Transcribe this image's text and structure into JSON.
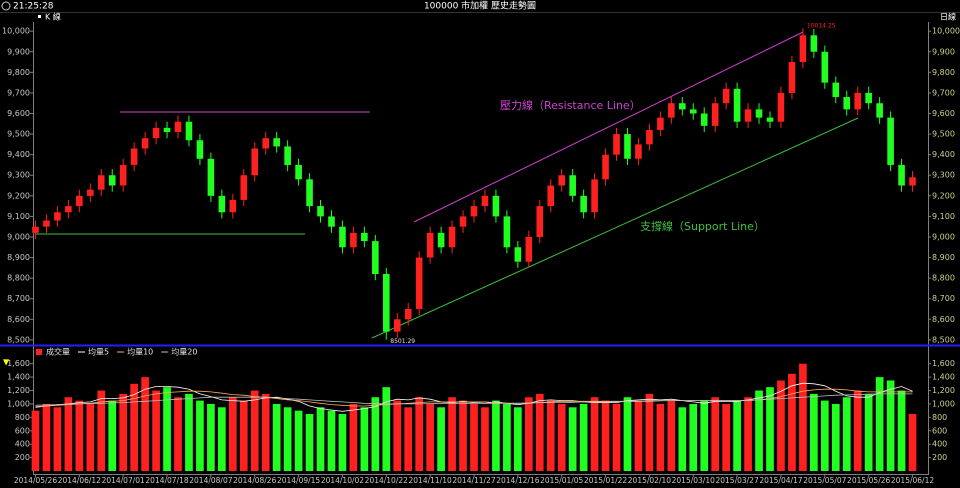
{
  "chart_data": [
    {
      "type": "candlestick",
      "title": "100000 市加權  歷史走勢圖",
      "time": "21:25:28",
      "period": "日線",
      "up_color": "#ff2020",
      "down_color": "#20ff20",
      "series": [
        {
          "name": "K 線",
          "open": [
            9020,
            9050,
            9080,
            9120,
            9150,
            9200,
            9230,
            9300,
            9250,
            9350,
            9430,
            9480,
            9530,
            9510,
            9560,
            9470,
            9380,
            9200,
            9120,
            9180,
            9300,
            9430,
            9480,
            9440,
            9350,
            9280,
            9150,
            9100,
            9050,
            8950,
            9020,
            8980,
            8820,
            8540,
            8600,
            8650,
            8900,
            9020,
            8950,
            9050,
            9100,
            9150,
            9200,
            9100,
            8950,
            8880,
            9000,
            9150,
            9250,
            9300,
            9200,
            9120,
            9280,
            9400,
            9500,
            9380,
            9450,
            9520,
            9580,
            9650,
            9620,
            9600,
            9540,
            9650,
            9720,
            9560,
            9620,
            9580,
            9560,
            9700,
            9850,
            9980,
            9900,
            9750,
            9680,
            9620,
            9700,
            9650,
            9580,
            9350,
            9250
          ],
          "high": [
            9080,
            9110,
            9150,
            9180,
            9230,
            9260,
            9330,
            9330,
            9380,
            9460,
            9510,
            9560,
            9560,
            9590,
            9590,
            9500,
            9410,
            9230,
            9210,
            9330,
            9460,
            9510,
            9510,
            9470,
            9380,
            9310,
            9180,
            9130,
            9080,
            9050,
            9050,
            9010,
            8850,
            8630,
            8680,
            8930,
            9050,
            9050,
            9080,
            9130,
            9180,
            9230,
            9230,
            9130,
            8980,
            9030,
            9180,
            9280,
            9330,
            9330,
            9230,
            9310,
            9430,
            9530,
            9530,
            9480,
            9550,
            9610,
            9680,
            9680,
            9650,
            9630,
            9680,
            9750,
            9750,
            9650,
            9650,
            9610,
            9730,
            9880,
            10014.25,
            10010,
            9930,
            9780,
            9710,
            9730,
            9730,
            9680,
            9610,
            9380,
            9320
          ],
          "low": [
            8990,
            9020,
            9050,
            9090,
            9120,
            9170,
            9200,
            9220,
            9220,
            9320,
            9400,
            9450,
            9480,
            9480,
            9440,
            9350,
            9170,
            9090,
            9090,
            9150,
            9270,
            9400,
            9410,
            9320,
            9250,
            9120,
            9070,
            9020,
            8920,
            8920,
            8950,
            8790,
            8501.29,
            8510,
            8570,
            8620,
            8870,
            8920,
            8920,
            9020,
            9070,
            9120,
            9070,
            8920,
            8850,
            8850,
            8970,
            9120,
            9220,
            9170,
            9090,
            9090,
            9250,
            9370,
            9350,
            9350,
            9420,
            9490,
            9550,
            9590,
            9570,
            9510,
            9510,
            9620,
            9530,
            9530,
            9550,
            9530,
            9530,
            9670,
            9820,
            9870,
            9720,
            9650,
            9590,
            9590,
            9620,
            9550,
            9320,
            9220,
            9220
          ],
          "close": [
            9050,
            9080,
            9120,
            9150,
            9200,
            9230,
            9300,
            9250,
            9350,
            9430,
            9480,
            9530,
            9510,
            9560,
            9470,
            9380,
            9200,
            9120,
            9180,
            9300,
            9430,
            9480,
            9440,
            9350,
            9280,
            9150,
            9100,
            9050,
            8950,
            9020,
            8980,
            8820,
            8540,
            8600,
            8650,
            8900,
            9020,
            8950,
            9050,
            9100,
            9150,
            9200,
            9100,
            8950,
            8880,
            9000,
            9150,
            9250,
            9300,
            9200,
            9120,
            9280,
            9400,
            9500,
            9380,
            9450,
            9520,
            9580,
            9650,
            9620,
            9600,
            9540,
            9650,
            9720,
            9560,
            9620,
            9580,
            9560,
            9700,
            9850,
            9980,
            9900,
            9750,
            9680,
            9620,
            9700,
            9650,
            9580,
            9350,
            9250,
            9290
          ]
        }
      ],
      "extremes": [
        10014.25,
        8501.29
      ],
      "annotations": [
        {
          "text": "壓力線（Resistance Line）",
          "color": "#d040d0"
        },
        {
          "text": "支撐線（Support Line）",
          "color": "#40c040"
        }
      ],
      "ylim": [
        8480,
        10030
      ],
      "yticks": [
        {
          "value": 8500,
          "label": "8,500"
        },
        {
          "value": 8600,
          "label": "8,600"
        },
        {
          "value": 8700,
          "label": "8,700"
        },
        {
          "value": 8800,
          "label": "8,800"
        },
        {
          "value": 8900,
          "label": "8,900"
        },
        {
          "value": 9000,
          "label": "9,000"
        },
        {
          "value": 9100,
          "label": "9,100"
        },
        {
          "value": 9200,
          "label": "9,200"
        },
        {
          "value": 9300,
          "label": "9,300"
        },
        {
          "value": 9400,
          "label": "9,400"
        },
        {
          "value": 9500,
          "label": "9,500"
        },
        {
          "value": 9600,
          "label": "9,600"
        },
        {
          "value": 9700,
          "label": "9,700"
        },
        {
          "value": 9800,
          "label": "9,800"
        },
        {
          "value": 9900,
          "label": "9,900"
        },
        {
          "value": 10000,
          "label": "10,000"
        }
      ],
      "grid": false
    },
    {
      "type": "bar",
      "categories": [
        "2014/05/26",
        null,
        null,
        null,
        "2014/06/12",
        null,
        null,
        null,
        "2014/07/01",
        null,
        null,
        null,
        "2014/07/18",
        null,
        null,
        null,
        "2014/08/07",
        null,
        null,
        null,
        "2014/08/26",
        null,
        null,
        null,
        "2014/09/15",
        null,
        null,
        null,
        "2014/10/02",
        null,
        null,
        null,
        "2014/10/22",
        null,
        null,
        null,
        "2014/11/10",
        null,
        null,
        null,
        "2014/11/27",
        null,
        null,
        null,
        "2014/12/16",
        null,
        null,
        null,
        "2015/01/05",
        null,
        null,
        null,
        "2015/01/22",
        null,
        null,
        null,
        "2015/02/10",
        null,
        null,
        null,
        "2015/03/10",
        null,
        null,
        null,
        "2015/03/27",
        null,
        null,
        null,
        "2015/04/17",
        null,
        null,
        null,
        "2015/05/07",
        null,
        null,
        null,
        "2015/05/26",
        null,
        null,
        null,
        "2015/06/12"
      ],
      "series": [
        {
          "name": "成交量",
          "type": "bar",
          "color": "#ff2020",
          "values": [
            900,
            1000,
            950,
            1100,
            1050,
            1000,
            1200,
            1050,
            1150,
            1300,
            1400,
            1200,
            1250,
            1100,
            1150,
            1050,
            1000,
            950,
            1100,
            1050,
            1200,
            1150,
            1000,
            950,
            900,
            850,
            950,
            900,
            850,
            1000,
            950,
            1100,
            1250,
            1050,
            950,
            1100,
            1000,
            950,
            1100,
            1050,
            1000,
            950,
            1050,
            1000,
            950,
            1100,
            1150,
            1050,
            1000,
            950,
            1000,
            1100,
            1050,
            1000,
            1100,
            1050,
            1150,
            1000,
            1050,
            950,
            1000,
            1050,
            1100,
            1000,
            1050,
            1100,
            1200,
            1250,
            1350,
            1450,
            1600,
            1150,
            1050,
            1000,
            1100,
            1200,
            1150,
            1400,
            1350,
            1200,
            850
          ]
        },
        {
          "name": "均量5",
          "type": "line",
          "color": "#ffffff",
          "values": [
            950,
            970,
            990,
            1000,
            1020,
            1030,
            1080,
            1080,
            1090,
            1140,
            1220,
            1260,
            1260,
            1250,
            1220,
            1150,
            1110,
            1060,
            1050,
            1040,
            1060,
            1090,
            1100,
            1070,
            1040,
            970,
            930,
            910,
            890,
            910,
            930,
            960,
            1030,
            1070,
            1060,
            1090,
            1070,
            1030,
            1020,
            1040,
            1020,
            1010,
            1030,
            1010,
            990,
            1010,
            1050,
            1060,
            1050,
            1050,
            1030,
            1020,
            1020,
            1020,
            1050,
            1060,
            1070,
            1060,
            1070,
            1050,
            1030,
            1010,
            1040,
            1040,
            1040,
            1060,
            1090,
            1120,
            1190,
            1270,
            1310,
            1300,
            1270,
            1190,
            1120,
            1100,
            1100,
            1170,
            1220,
            1260,
            1190
          ]
        },
        {
          "name": "均量10",
          "type": "line",
          "color": "#ffb060",
          "values": [
            960,
            970,
            980,
            990,
            1000,
            1010,
            1030,
            1040,
            1050,
            1080,
            1120,
            1150,
            1170,
            1180,
            1190,
            1190,
            1180,
            1160,
            1140,
            1130,
            1110,
            1100,
            1080,
            1060,
            1050,
            1030,
            1010,
            990,
            980,
            970,
            970,
            980,
            990,
            1000,
            1010,
            1020,
            1030,
            1030,
            1030,
            1030,
            1030,
            1030,
            1020,
            1010,
            1010,
            1010,
            1020,
            1030,
            1040,
            1040,
            1040,
            1040,
            1040,
            1040,
            1040,
            1040,
            1050,
            1050,
            1050,
            1050,
            1050,
            1050,
            1050,
            1050,
            1050,
            1050,
            1060,
            1080,
            1110,
            1150,
            1190,
            1210,
            1220,
            1220,
            1210,
            1190,
            1180,
            1180,
            1180,
            1180,
            1180
          ]
        },
        {
          "name": "均量20",
          "type": "line",
          "color": "#c0c0c0",
          "values": [
            980,
            985,
            990,
            995,
            1000,
            1005,
            1010,
            1015,
            1020,
            1030,
            1040,
            1050,
            1060,
            1070,
            1080,
            1090,
            1100,
            1100,
            1100,
            1100,
            1100,
            1100,
            1090,
            1080,
            1070,
            1060,
            1050,
            1040,
            1030,
            1020,
            1010,
            1005,
            1000,
            1000,
            1000,
            1000,
            1005,
            1010,
            1010,
            1010,
            1010,
            1010,
            1010,
            1010,
            1010,
            1015,
            1020,
            1020,
            1020,
            1025,
            1030,
            1030,
            1030,
            1035,
            1040,
            1040,
            1040,
            1045,
            1050,
            1050,
            1050,
            1050,
            1050,
            1050,
            1050,
            1055,
            1060,
            1070,
            1080,
            1090,
            1100,
            1110,
            1120,
            1130,
            1135,
            1140,
            1145,
            1150,
            1150,
            1150,
            1150
          ]
        }
      ],
      "ylim": [
        0,
        1700
      ],
      "yticks": [
        200,
        400,
        600,
        800,
        {
          "value": 1000,
          "label": "1,000"
        },
        {
          "value": 1200,
          "label": "1,200"
        },
        {
          "value": 1400,
          "label": "1,400"
        },
        {
          "value": 1600,
          "label": "1,600"
        }
      ],
      "grid": false
    }
  ]
}
